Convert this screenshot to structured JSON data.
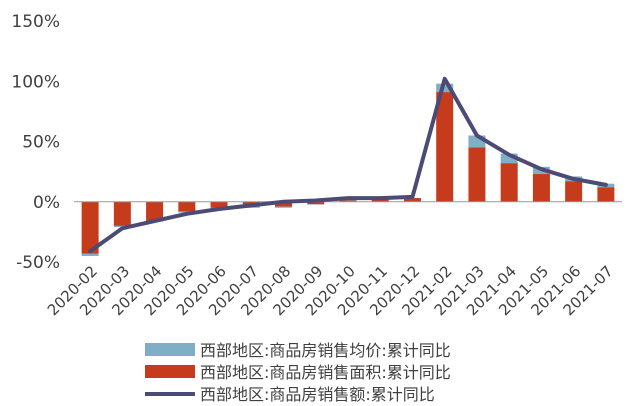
{
  "chart_data": {
    "type": "bar",
    "categories": [
      "2020-02",
      "2020-03",
      "2020-04",
      "2020-05",
      "2020-06",
      "2020-07",
      "2020-08",
      "2020-09",
      "2020-10",
      "2020-11",
      "2020-12",
      "2021-02",
      "2021-03",
      "2021-04",
      "2021-05",
      "2021-06",
      "2021-07"
    ],
    "ylim": [
      -50,
      150
    ],
    "yticks": [
      -50,
      0,
      50,
      100,
      150
    ],
    "ytick_labels": [
      "-50%",
      "0%",
      "50%",
      "100%",
      "150%"
    ],
    "grid": false,
    "legend_position": "bottom",
    "series": [
      {
        "name": "西部地区:商品房销售均价:累计同比",
        "kind": "bar",
        "color": "#7fafc6",
        "values": [
          2,
          -1,
          0,
          1,
          1,
          2,
          1,
          0,
          1,
          0,
          0,
          7,
          10,
          8,
          6,
          4,
          3
        ]
      },
      {
        "name": "西部地区:商品房销售面积:累计同比",
        "kind": "bar",
        "color": "#c73b1d",
        "values": [
          -43,
          -20,
          -16,
          -8,
          -5,
          -3,
          -4,
          -2,
          1,
          2,
          3,
          91,
          45,
          32,
          23,
          17,
          12
        ]
      },
      {
        "name": "西部地区:商品房销售额:累计同比",
        "kind": "line",
        "color": "#4b4b75",
        "values": [
          -41,
          -22,
          -16,
          -10,
          -6,
          -3,
          0,
          1,
          3,
          3,
          4,
          102,
          55,
          39,
          27,
          19,
          14
        ]
      }
    ]
  }
}
